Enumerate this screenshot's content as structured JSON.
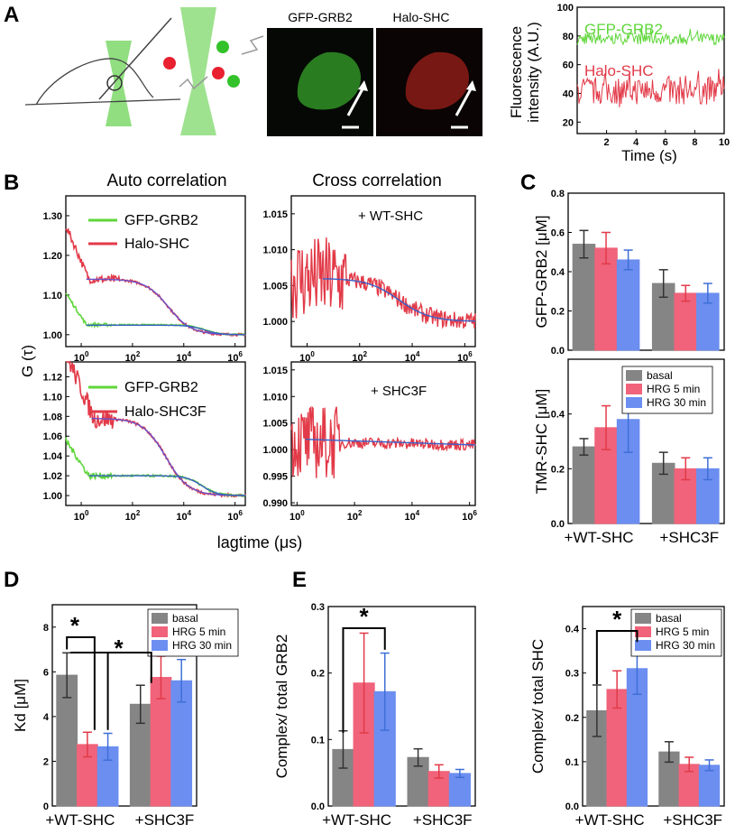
{
  "colors": {
    "green": "#5fd63a",
    "red": "#e23a48",
    "blue": "#3f6fd6",
    "grey": "#858585",
    "pink": "#f0637a",
    "bluebar": "#6b8ef0",
    "fit": "#3a5fc8"
  },
  "panel_letters": {
    "a": "A",
    "b": "B",
    "c": "C",
    "d": "D",
    "e": "E"
  },
  "panel_a": {
    "image_labels": [
      "GFP-GRB2",
      "Halo-SHC"
    ],
    "trace": {
      "ylabel": "Fluorescence intensity (A.U.)",
      "ylabel_line1": "Fluorescence",
      "ylabel_line2": "intensity (A.U.)",
      "xlabel": "Time (s)",
      "yticks": [
        "20",
        "40",
        "60",
        "80",
        "100"
      ],
      "xticks": [
        "2",
        "4",
        "6",
        "8",
        "10"
      ],
      "legend": [
        "GFP-GRB2",
        "Halo-SHC"
      ]
    }
  },
  "panel_b": {
    "titles": [
      "Auto correlation",
      "Cross correlation"
    ],
    "ylabel": "G (τ)",
    "xlabel": "lagtime (μs)",
    "auto_top": {
      "yticks": [
        "1.00",
        "1.10",
        "1.20",
        "1.30"
      ],
      "legend": [
        "GFP-GRB2",
        "Halo-SHC"
      ]
    },
    "cross_top": {
      "yticks": [
        "1.000",
        "1.005",
        "1.010",
        "1.015"
      ],
      "condition": "+ WT-SHC"
    },
    "auto_bottom": {
      "yticks": [
        "1.00",
        "1.02",
        "1.04",
        "1.06",
        "1.08",
        "1.10",
        "1.12"
      ],
      "legend": [
        "GFP-GRB2",
        "Halo-SHC3F"
      ]
    },
    "cross_bottom": {
      "yticks": [
        "0.990",
        "0.995",
        "1.000",
        "1.005",
        "1.010",
        "1.015"
      ],
      "condition": "+ SHC3F"
    },
    "xticks_top": [
      "10",
      "10",
      "10",
      "10"
    ],
    "xticks_bottom": [
      "10",
      "10",
      "10",
      "10"
    ],
    "xtick_exps_top": [
      "0",
      "2",
      "4",
      "6"
    ],
    "xtick_exps_bottom_auto": [
      "0",
      "2",
      "4",
      "6"
    ],
    "xtick_exps_bottom_cross": [
      "0",
      "2",
      "4",
      "6"
    ]
  },
  "chart_data": [
    {
      "id": "C-top",
      "type": "bar",
      "ylabel": "GFP-GRB2 [μM]",
      "ylim": [
        0,
        0.8
      ],
      "yticks": [
        "0.0",
        "0.2",
        "0.4",
        "0.6",
        "0.8"
      ],
      "categories": [
        "+WT-SHC",
        "+SHC3F"
      ],
      "series": [
        {
          "name": "basal",
          "values": [
            0.54,
            0.34
          ],
          "errors": [
            0.07,
            0.07
          ]
        },
        {
          "name": "HRG 5 min",
          "values": [
            0.52,
            0.29
          ],
          "errors": [
            0.08,
            0.04
          ]
        },
        {
          "name": "HRG 30 min",
          "values": [
            0.46,
            0.29
          ],
          "errors": [
            0.05,
            0.05
          ]
        }
      ]
    },
    {
      "id": "C-bottom",
      "type": "bar",
      "ylabel": "TMR-SHC [μM]",
      "ylim": [
        0,
        0.6
      ],
      "yticks": [
        "0.0",
        "0.2",
        "0.4"
      ],
      "categories": [
        "+WT-SHC",
        "+SHC3F"
      ],
      "series": [
        {
          "name": "basal",
          "values": [
            0.28,
            0.22
          ],
          "errors": [
            0.03,
            0.04
          ]
        },
        {
          "name": "HRG 5 min",
          "values": [
            0.35,
            0.2
          ],
          "errors": [
            0.08,
            0.04
          ]
        },
        {
          "name": "HRG 30 min",
          "values": [
            0.38,
            0.2
          ],
          "errors": [
            0.12,
            0.04
          ]
        }
      ]
    },
    {
      "id": "D",
      "type": "bar",
      "ylabel": "Kd [μM]",
      "ylim": [
        0,
        9
      ],
      "yticks": [
        "0",
        "2",
        "4",
        "6",
        "8"
      ],
      "categories": [
        "+WT-SHC",
        "+SHC3F"
      ],
      "series": [
        {
          "name": "basal",
          "values": [
            5.85,
            4.55
          ],
          "errors": [
            1.0,
            0.85
          ]
        },
        {
          "name": "HRG 5 min",
          "values": [
            2.75,
            5.75
          ],
          "errors": [
            0.55,
            0.95
          ]
        },
        {
          "name": "HRG 30 min",
          "values": [
            2.65,
            5.6
          ],
          "errors": [
            0.6,
            0.95
          ]
        }
      ],
      "annotations": [
        "*",
        "*"
      ]
    },
    {
      "id": "E-left",
      "type": "bar",
      "ylabel": "Complex/ total GRB2",
      "ylim": [
        0,
        0.3
      ],
      "yticks": [
        "0.0",
        "0.1",
        "0.2",
        "0.3"
      ],
      "categories": [
        "+WT-SHC",
        "+SHC3F"
      ],
      "series": [
        {
          "name": "basal",
          "values": [
            0.085,
            0.073
          ],
          "errors": [
            0.028,
            0.013
          ]
        },
        {
          "name": "HRG 5 min",
          "values": [
            0.185,
            0.052
          ],
          "errors": [
            0.075,
            0.01
          ]
        },
        {
          "name": "HRG 30 min",
          "values": [
            0.172,
            0.049
          ],
          "errors": [
            0.058,
            0.006
          ]
        }
      ],
      "annotations": [
        "*"
      ]
    },
    {
      "id": "E-right",
      "type": "bar",
      "ylabel": "Complex/ total SHC",
      "ylim": [
        0,
        0.45
      ],
      "yticks": [
        "0.0",
        "0.1",
        "0.2",
        "0.3",
        "0.4"
      ],
      "categories": [
        "+WT-SHC",
        "+SHC3F"
      ],
      "series": [
        {
          "name": "basal",
          "values": [
            0.215,
            0.122
          ],
          "errors": [
            0.058,
            0.023
          ]
        },
        {
          "name": "HRG 5 min",
          "values": [
            0.263,
            0.094
          ],
          "errors": [
            0.042,
            0.016
          ]
        },
        {
          "name": "HRG 30 min",
          "values": [
            0.31,
            0.092
          ],
          "errors": [
            0.058,
            0.012
          ]
        }
      ],
      "annotations": [
        "*"
      ]
    }
  ],
  "legend": {
    "labels": [
      "basal",
      "HRG 5 min",
      "HRG 30 min"
    ]
  }
}
